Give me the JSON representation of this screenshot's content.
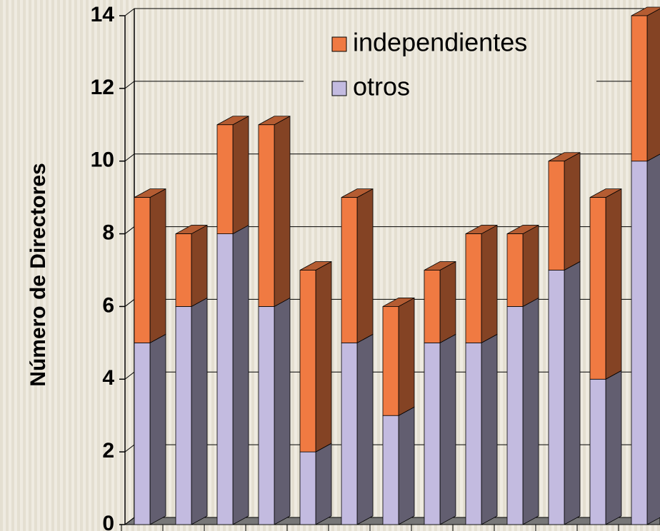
{
  "chart_data": {
    "type": "bar",
    "stacked": true,
    "y_label": "Número de Directores",
    "categories": [
      null,
      null,
      null,
      null,
      null,
      null,
      null,
      null,
      null,
      null,
      null,
      null,
      null
    ],
    "series": [
      {
        "name": "otros",
        "color": "#c3bbe0",
        "values": [
          5,
          6,
          8,
          6,
          2,
          5,
          3,
          5,
          5,
          6,
          7,
          4,
          10
        ]
      },
      {
        "name": "independientes",
        "color": "#f07a42",
        "values": [
          4,
          2,
          3,
          5,
          5,
          4,
          3,
          2,
          3,
          2,
          3,
          5,
          4
        ]
      }
    ],
    "ylim": [
      0,
      14
    ],
    "yticks": [
      0,
      2,
      4,
      6,
      8,
      10,
      12,
      14
    ],
    "grid": true,
    "legend": "top"
  }
}
